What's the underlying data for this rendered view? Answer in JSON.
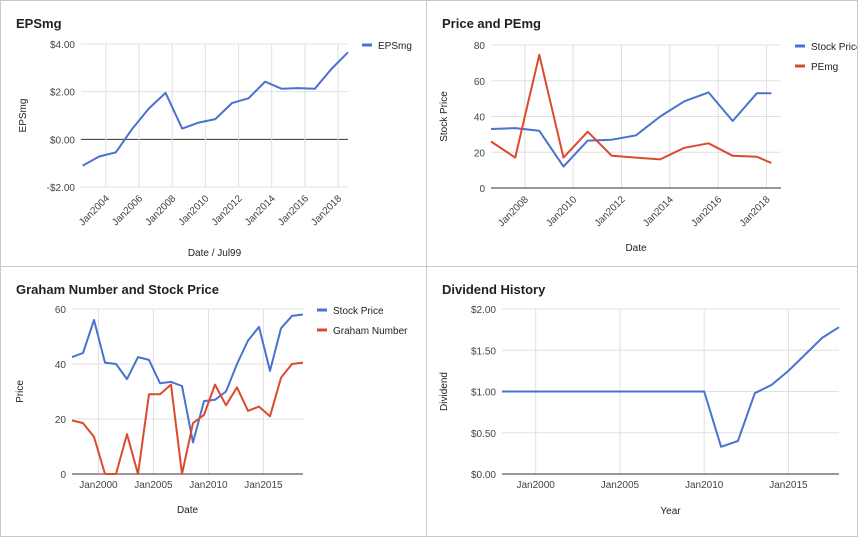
{
  "colors": {
    "blue": "#4a72cf",
    "red": "#dc4a2d"
  },
  "charts": [
    {
      "title": "EPSmg",
      "chart_data": {
        "type": "line",
        "title": "EPSmg",
        "xlabel": "Date / Jul99",
        "ylabel": "EPSmg",
        "x_axis": "date",
        "xlim": [
          2002.5,
          2018.6
        ],
        "ylim": [
          -2,
          4
        ],
        "y_ticks": [
          {
            "value": -2,
            "label": "-$2.00"
          },
          {
            "value": 0,
            "label": "$0.00"
          },
          {
            "value": 2,
            "label": "$2.00"
          },
          {
            "value": 4,
            "label": "$4.00"
          }
        ],
        "x_ticks": [
          {
            "value": 2004,
            "label": "Jan2004"
          },
          {
            "value": 2006,
            "label": "Jan2006"
          },
          {
            "value": 2008,
            "label": "Jan2008"
          },
          {
            "value": 2010,
            "label": "Jan2010"
          },
          {
            "value": 2012,
            "label": "Jan2012"
          },
          {
            "value": 2014,
            "label": "Jan2014"
          },
          {
            "value": 2016,
            "label": "Jan2016"
          },
          {
            "value": 2018,
            "label": "Jan2018"
          }
        ],
        "x_label_rotation": -45,
        "legend_position": "top-right",
        "series": [
          {
            "name": "EPSmg",
            "color": "blue",
            "x": [
              2002.6,
              2003.6,
              2004.6,
              2005.6,
              2006.6,
              2007.6,
              2008.6,
              2009.6,
              2010.6,
              2011.6,
              2012.6,
              2013.6,
              2014.6,
              2015.6,
              2016.6,
              2017.6,
              2018.6
            ],
            "y": [
              -1.1,
              -0.72,
              -0.55,
              0.45,
              1.3,
              1.95,
              0.45,
              0.7,
              0.85,
              1.52,
              1.72,
              2.42,
              2.12,
              2.15,
              2.12,
              2.95,
              3.65
            ]
          }
        ]
      }
    },
    {
      "title": "Price and PEmg",
      "chart_data": {
        "type": "line",
        "title": "Price and PEmg",
        "xlabel": "Date",
        "ylabel": "Stock Price",
        "x_axis": "date",
        "xlim": [
          2006.6,
          2018.6
        ],
        "ylim": [
          0,
          80
        ],
        "y_ticks": [
          {
            "value": 0,
            "label": "0"
          },
          {
            "value": 20,
            "label": "20"
          },
          {
            "value": 40,
            "label": "40"
          },
          {
            "value": 60,
            "label": "60"
          },
          {
            "value": 80,
            "label": "80"
          }
        ],
        "x_ticks": [
          {
            "value": 2008,
            "label": "Jan2008"
          },
          {
            "value": 2010,
            "label": "Jan2010"
          },
          {
            "value": 2012,
            "label": "Jan2012"
          },
          {
            "value": 2014,
            "label": "Jan2014"
          },
          {
            "value": 2016,
            "label": "Jan2016"
          },
          {
            "value": 2018,
            "label": "Jan2018"
          }
        ],
        "x_label_rotation": -45,
        "legend_position": "top-right",
        "series": [
          {
            "name": "Stock Price",
            "color": "blue",
            "x": [
              2006.6,
              2007.6,
              2008.6,
              2009.6,
              2010.6,
              2011.6,
              2012.6,
              2013.6,
              2014.6,
              2015.6,
              2016.6,
              2017.6,
              2018.2
            ],
            "y": [
              33,
              33.5,
              32,
              12,
              26.5,
              27,
              29.5,
              40,
              48.5,
              53.5,
              37.5,
              53,
              53
            ]
          },
          {
            "name": "PEmg",
            "color": "red",
            "x": [
              2006.6,
              2007.6,
              2008.6,
              2009.6,
              2010.6,
              2011.6,
              2012.6,
              2013.6,
              2014.6,
              2015.6,
              2016.6,
              2017.6,
              2018.2
            ],
            "y": [
              26,
              17,
              74.5,
              17,
              31.5,
              18,
              17,
              16,
              22.5,
              25,
              18,
              17.5,
              14
            ]
          }
        ]
      }
    },
    {
      "title": "Graham Number and Stock Price",
      "chart_data": {
        "type": "line",
        "title": "Graham Number and Stock Price",
        "xlabel": "Date",
        "ylabel": "Price",
        "x_axis": "date",
        "xlim": [
          1997.6,
          2018.6
        ],
        "ylim": [
          0,
          60
        ],
        "y_ticks": [
          {
            "value": 0,
            "label": "0"
          },
          {
            "value": 20,
            "label": "20"
          },
          {
            "value": 40,
            "label": "40"
          },
          {
            "value": 60,
            "label": "60"
          }
        ],
        "x_ticks": [
          {
            "value": 2000,
            "label": "Jan2000"
          },
          {
            "value": 2005,
            "label": "Jan2005"
          },
          {
            "value": 2010,
            "label": "Jan2010"
          },
          {
            "value": 2015,
            "label": "Jan2015"
          }
        ],
        "x_label_rotation": 0,
        "legend_position": "top-right",
        "series": [
          {
            "name": "Stock Price",
            "color": "blue",
            "x": [
              1997.6,
              1998.6,
              1999.6,
              2000.6,
              2001.6,
              2002.6,
              2003.6,
              2004.6,
              2005.6,
              2006.6,
              2007.6,
              2008.6,
              2009.6,
              2010.6,
              2011.6,
              2012.6,
              2013.6,
              2014.6,
              2015.6,
              2016.6,
              2017.6,
              2018.6
            ],
            "y": [
              42.5,
              44,
              56,
              40.5,
              40,
              34.5,
              42.5,
              41.5,
              33,
              33.5,
              32,
              11.5,
              26.5,
              27,
              30,
              40,
              48.5,
              53.5,
              37.5,
              53,
              57.5,
              58
            ]
          },
          {
            "name": "Graham Number",
            "color": "red",
            "x": [
              1997.6,
              1998.6,
              1999.6,
              2000.6,
              2001.6,
              2002.6,
              2003.6,
              2004.6,
              2005.6,
              2006.6,
              2007.6,
              2008.6,
              2009.6,
              2010.6,
              2011.6,
              2012.6,
              2013.6,
              2014.6,
              2015.6,
              2016.6,
              2017.6,
              2018.6
            ],
            "y": [
              19.5,
              18.5,
              13.5,
              0,
              0,
              14.5,
              0,
              29,
              29,
              32.5,
              0,
              18.5,
              21.5,
              32.5,
              25,
              31.5,
              23,
              24.5,
              21,
              35,
              40,
              40.5
            ]
          }
        ]
      }
    },
    {
      "title": "Dividend History",
      "chart_data": {
        "type": "line",
        "title": "Dividend History",
        "xlabel": "Year",
        "ylabel": "Dividend",
        "x_axis": "date",
        "xlim": [
          1998,
          2018
        ],
        "ylim": [
          0,
          2
        ],
        "y_ticks": [
          {
            "value": 0,
            "label": "$0.00"
          },
          {
            "value": 0.5,
            "label": "$0.50"
          },
          {
            "value": 1,
            "label": "$1.00"
          },
          {
            "value": 1.5,
            "label": "$1.50"
          },
          {
            "value": 2,
            "label": "$2.00"
          }
        ],
        "x_ticks": [
          {
            "value": 2000,
            "label": "Jan2000"
          },
          {
            "value": 2005,
            "label": "Jan2005"
          },
          {
            "value": 2010,
            "label": "Jan2010"
          },
          {
            "value": 2015,
            "label": "Jan2015"
          }
        ],
        "x_label_rotation": 0,
        "legend_position": "none",
        "series": [
          {
            "name": "Dividend",
            "color": "blue",
            "x": [
              1998,
              1999,
              2000,
              2001,
              2002,
              2003,
              2004,
              2005,
              2006,
              2007,
              2008,
              2009,
              2010,
              2011,
              2012,
              2013,
              2014,
              2015,
              2016,
              2017,
              2018
            ],
            "y": [
              1,
              1,
              1,
              1,
              1,
              1,
              1,
              1,
              1,
              1,
              1,
              1,
              1,
              0.33,
              0.4,
              0.98,
              1.08,
              1.25,
              1.45,
              1.65,
              1.78
            ]
          }
        ]
      }
    }
  ]
}
